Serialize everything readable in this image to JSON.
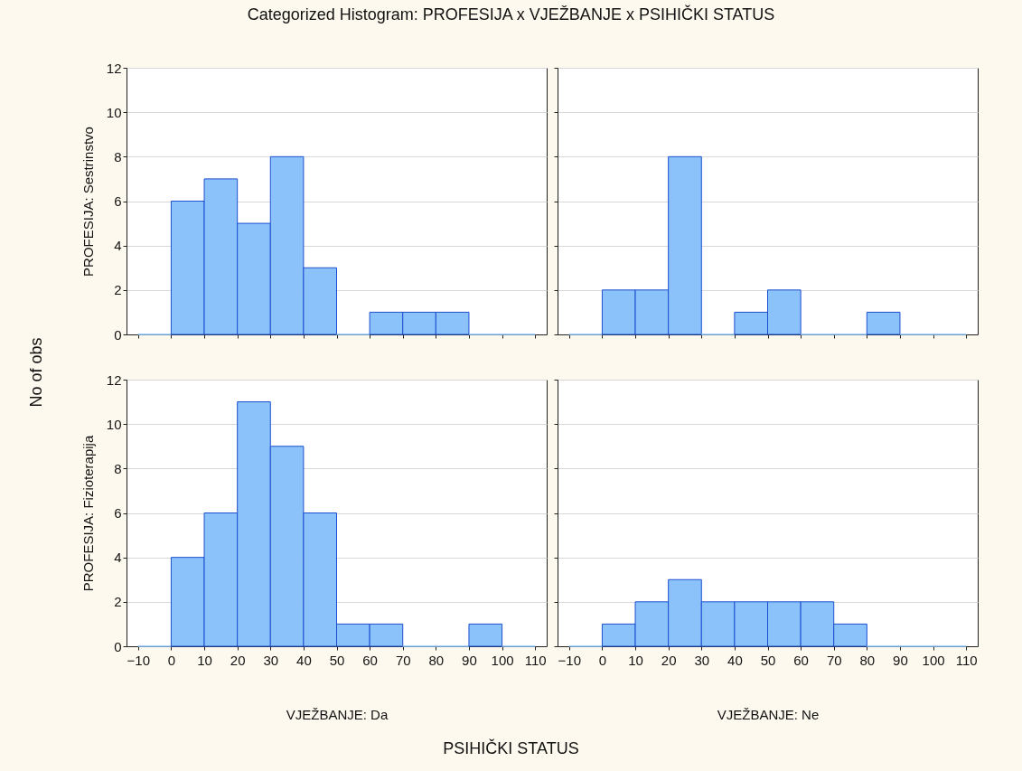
{
  "chart_data": [
    {
      "type": "histogram",
      "title": "Categorized Histogram: PROFESIJA x VJEŽBANJE x PSIHIČKI STATUS",
      "ylabel": "PROFESIJA: Sestrinstvo",
      "annotations": [
        "No of obs",
        "PSIHIČKI STATUS"
      ],
      "bins": [
        -10,
        0,
        10,
        20,
        30,
        40,
        50,
        60,
        70,
        80,
        90,
        100,
        110
      ],
      "values": [
        0,
        6,
        7,
        5,
        8,
        3,
        0,
        1,
        1,
        1,
        0,
        0
      ],
      "color": "#8cc2fa",
      "xlim": [
        -13.5,
        113.5
      ],
      "xticks": [
        -10,
        0,
        10,
        20,
        30,
        40,
        50,
        60,
        70,
        80,
        90,
        100,
        110
      ],
      "ylim": [
        0,
        12
      ],
      "yticks": [
        0,
        2,
        4,
        6,
        8,
        10,
        12
      ],
      "grid": "y",
      "tick_labels": "y"
    },
    {
      "type": "histogram",
      "bins": [
        -10,
        0,
        10,
        20,
        30,
        40,
        50,
        60,
        70,
        80,
        90,
        100,
        110
      ],
      "values": [
        0,
        2,
        2,
        8,
        0,
        1,
        2,
        0,
        0,
        1,
        0,
        0
      ],
      "color": "#8cc2fa",
      "xlim": [
        -13.5,
        113.5
      ],
      "xticks": [
        -10,
        0,
        10,
        20,
        30,
        40,
        50,
        60,
        70,
        80,
        90,
        100,
        110
      ],
      "ylim": [
        0,
        12
      ],
      "yticks": [
        0,
        2,
        4,
        6,
        8,
        10,
        12
      ],
      "grid": "y",
      "tick_labels": false
    },
    {
      "type": "histogram",
      "xlabel": "VJEŽBANJE: Da",
      "ylabel": "PROFESIJA: Fizioterapija",
      "bins": [
        -10,
        0,
        10,
        20,
        30,
        40,
        50,
        60,
        70,
        80,
        90,
        100,
        110
      ],
      "values": [
        0,
        4,
        6,
        11,
        9,
        6,
        1,
        1,
        0,
        0,
        1,
        0
      ],
      "color": "#8cc2fa",
      "xlim": [
        -13.5,
        113.5
      ],
      "xticks": [
        -10,
        0,
        10,
        20,
        30,
        40,
        50,
        60,
        70,
        80,
        90,
        100,
        110
      ],
      "ylim": [
        0,
        12
      ],
      "yticks": [
        0,
        2,
        4,
        6,
        8,
        10,
        12
      ],
      "grid": "y"
    },
    {
      "type": "histogram",
      "xlabel": "VJEŽBANJE: Ne",
      "bins": [
        -10,
        0,
        10,
        20,
        30,
        40,
        50,
        60,
        70,
        80,
        90,
        100,
        110
      ],
      "values": [
        0,
        1,
        2,
        3,
        2,
        2,
        2,
        2,
        1,
        0,
        0,
        0
      ],
      "color": "#8cc2fa",
      "xlim": [
        -13.5,
        113.5
      ],
      "xticks": [
        -10,
        0,
        10,
        20,
        30,
        40,
        50,
        60,
        70,
        80,
        90,
        100,
        110
      ],
      "ylim": [
        0,
        12
      ],
      "yticks": [
        0,
        2,
        4,
        6,
        8,
        10,
        12
      ],
      "grid": "y",
      "tick_labels": "x"
    }
  ]
}
